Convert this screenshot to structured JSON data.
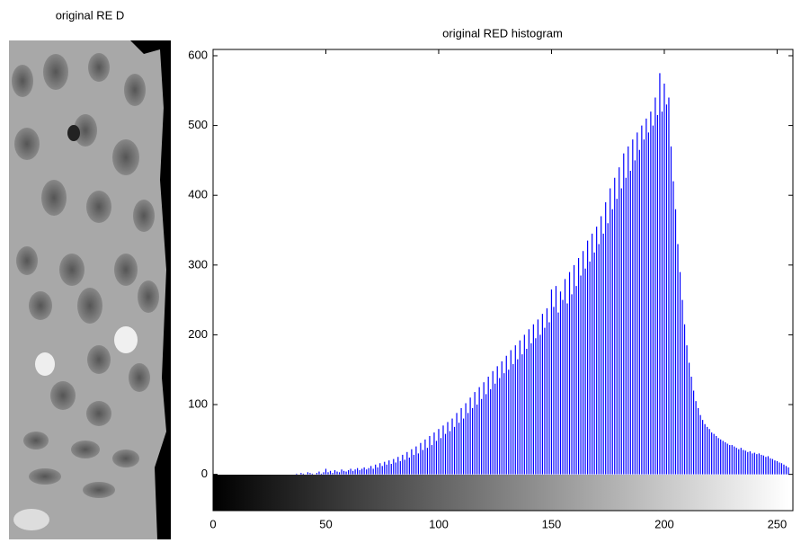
{
  "image_title": "original RE D",
  "chart_data": {
    "type": "stem",
    "title": "original RED histogram",
    "color": "#0000ff",
    "x": [
      0,
      1,
      2,
      3,
      4,
      5,
      6,
      7,
      8,
      9,
      10,
      11,
      12,
      13,
      14,
      15,
      16,
      17,
      18,
      19,
      20,
      21,
      22,
      23,
      24,
      25,
      26,
      27,
      28,
      29,
      30,
      31,
      32,
      33,
      34,
      35,
      36,
      37,
      38,
      39,
      40,
      41,
      42,
      43,
      44,
      45,
      46,
      47,
      48,
      49,
      50,
      51,
      52,
      53,
      54,
      55,
      56,
      57,
      58,
      59,
      60,
      61,
      62,
      63,
      64,
      65,
      66,
      67,
      68,
      69,
      70,
      71,
      72,
      73,
      74,
      75,
      76,
      77,
      78,
      79,
      80,
      81,
      82,
      83,
      84,
      85,
      86,
      87,
      88,
      89,
      90,
      91,
      92,
      93,
      94,
      95,
      96,
      97,
      98,
      99,
      100,
      101,
      102,
      103,
      104,
      105,
      106,
      107,
      108,
      109,
      110,
      111,
      112,
      113,
      114,
      115,
      116,
      117,
      118,
      119,
      120,
      121,
      122,
      123,
      124,
      125,
      126,
      127,
      128,
      129,
      130,
      131,
      132,
      133,
      134,
      135,
      136,
      137,
      138,
      139,
      140,
      141,
      142,
      143,
      144,
      145,
      146,
      147,
      148,
      149,
      150,
      151,
      152,
      153,
      154,
      155,
      156,
      157,
      158,
      159,
      160,
      161,
      162,
      163,
      164,
      165,
      166,
      167,
      168,
      169,
      170,
      171,
      172,
      173,
      174,
      175,
      176,
      177,
      178,
      179,
      180,
      181,
      182,
      183,
      184,
      185,
      186,
      187,
      188,
      189,
      190,
      191,
      192,
      193,
      194,
      195,
      196,
      197,
      198,
      199,
      200,
      201,
      202,
      203,
      204,
      205,
      206,
      207,
      208,
      209,
      210,
      211,
      212,
      213,
      214,
      215,
      216,
      217,
      218,
      219,
      220,
      221,
      222,
      223,
      224,
      225,
      226,
      227,
      228,
      229,
      230,
      231,
      232,
      233,
      234,
      235,
      236,
      237,
      238,
      239,
      240,
      241,
      242,
      243,
      244,
      245,
      246,
      247,
      248,
      249,
      250,
      251,
      252,
      253,
      254,
      255
    ],
    "values": [
      0,
      0,
      0,
      0,
      0,
      0,
      0,
      0,
      0,
      0,
      0,
      0,
      0,
      0,
      0,
      0,
      0,
      0,
      0,
      0,
      0,
      0,
      0,
      0,
      0,
      0,
      0,
      0,
      0,
      0,
      0,
      0,
      0,
      0,
      0,
      0,
      0,
      1,
      0,
      2,
      1,
      0,
      3,
      2,
      1,
      0,
      2,
      4,
      1,
      3,
      8,
      3,
      5,
      2,
      6,
      4,
      3,
      7,
      5,
      4,
      6,
      8,
      5,
      7,
      9,
      6,
      8,
      10,
      7,
      9,
      12,
      8,
      14,
      10,
      16,
      12,
      18,
      14,
      20,
      15,
      22,
      17,
      25,
      19,
      28,
      21,
      32,
      24,
      36,
      28,
      40,
      30,
      45,
      35,
      50,
      38,
      55,
      42,
      60,
      48,
      65,
      52,
      70,
      58,
      75,
      62,
      80,
      68,
      88,
      74,
      95,
      80,
      102,
      88,
      110,
      95,
      118,
      100,
      125,
      108,
      132,
      115,
      140,
      122,
      148,
      130,
      155,
      138,
      162,
      145,
      170,
      150,
      178,
      158,
      185,
      165,
      192,
      172,
      200,
      180,
      208,
      188,
      215,
      195,
      222,
      200,
      230,
      210,
      238,
      218,
      265,
      240,
      270,
      232,
      262,
      250,
      280,
      245,
      290,
      258,
      300,
      270,
      310,
      285,
      320,
      295,
      335,
      305,
      345,
      318,
      355,
      330,
      370,
      345,
      390,
      360,
      410,
      380,
      425,
      395,
      440,
      410,
      460,
      425,
      470,
      435,
      480,
      450,
      490,
      465,
      500,
      480,
      510,
      490,
      520,
      500,
      540,
      515,
      575,
      520,
      560,
      530,
      540,
      470,
      420,
      380,
      330,
      290,
      250,
      215,
      185,
      160,
      140,
      120,
      105,
      95,
      85,
      78,
      72,
      68,
      65,
      60,
      58,
      55,
      52,
      50,
      48,
      46,
      44,
      42,
      42,
      40,
      38,
      36,
      38,
      35,
      34,
      32,
      33,
      30,
      31,
      29,
      30,
      28,
      27,
      25,
      26,
      23,
      22,
      20,
      19,
      17,
      16,
      14,
      12,
      10
    ],
    "xlim": [
      0,
      257
    ],
    "ylim": [
      -52,
      609
    ],
    "xticks": [
      0,
      50,
      100,
      150,
      200,
      250
    ],
    "yticks": [
      0,
      100,
      200,
      300,
      400,
      500,
      600
    ]
  }
}
